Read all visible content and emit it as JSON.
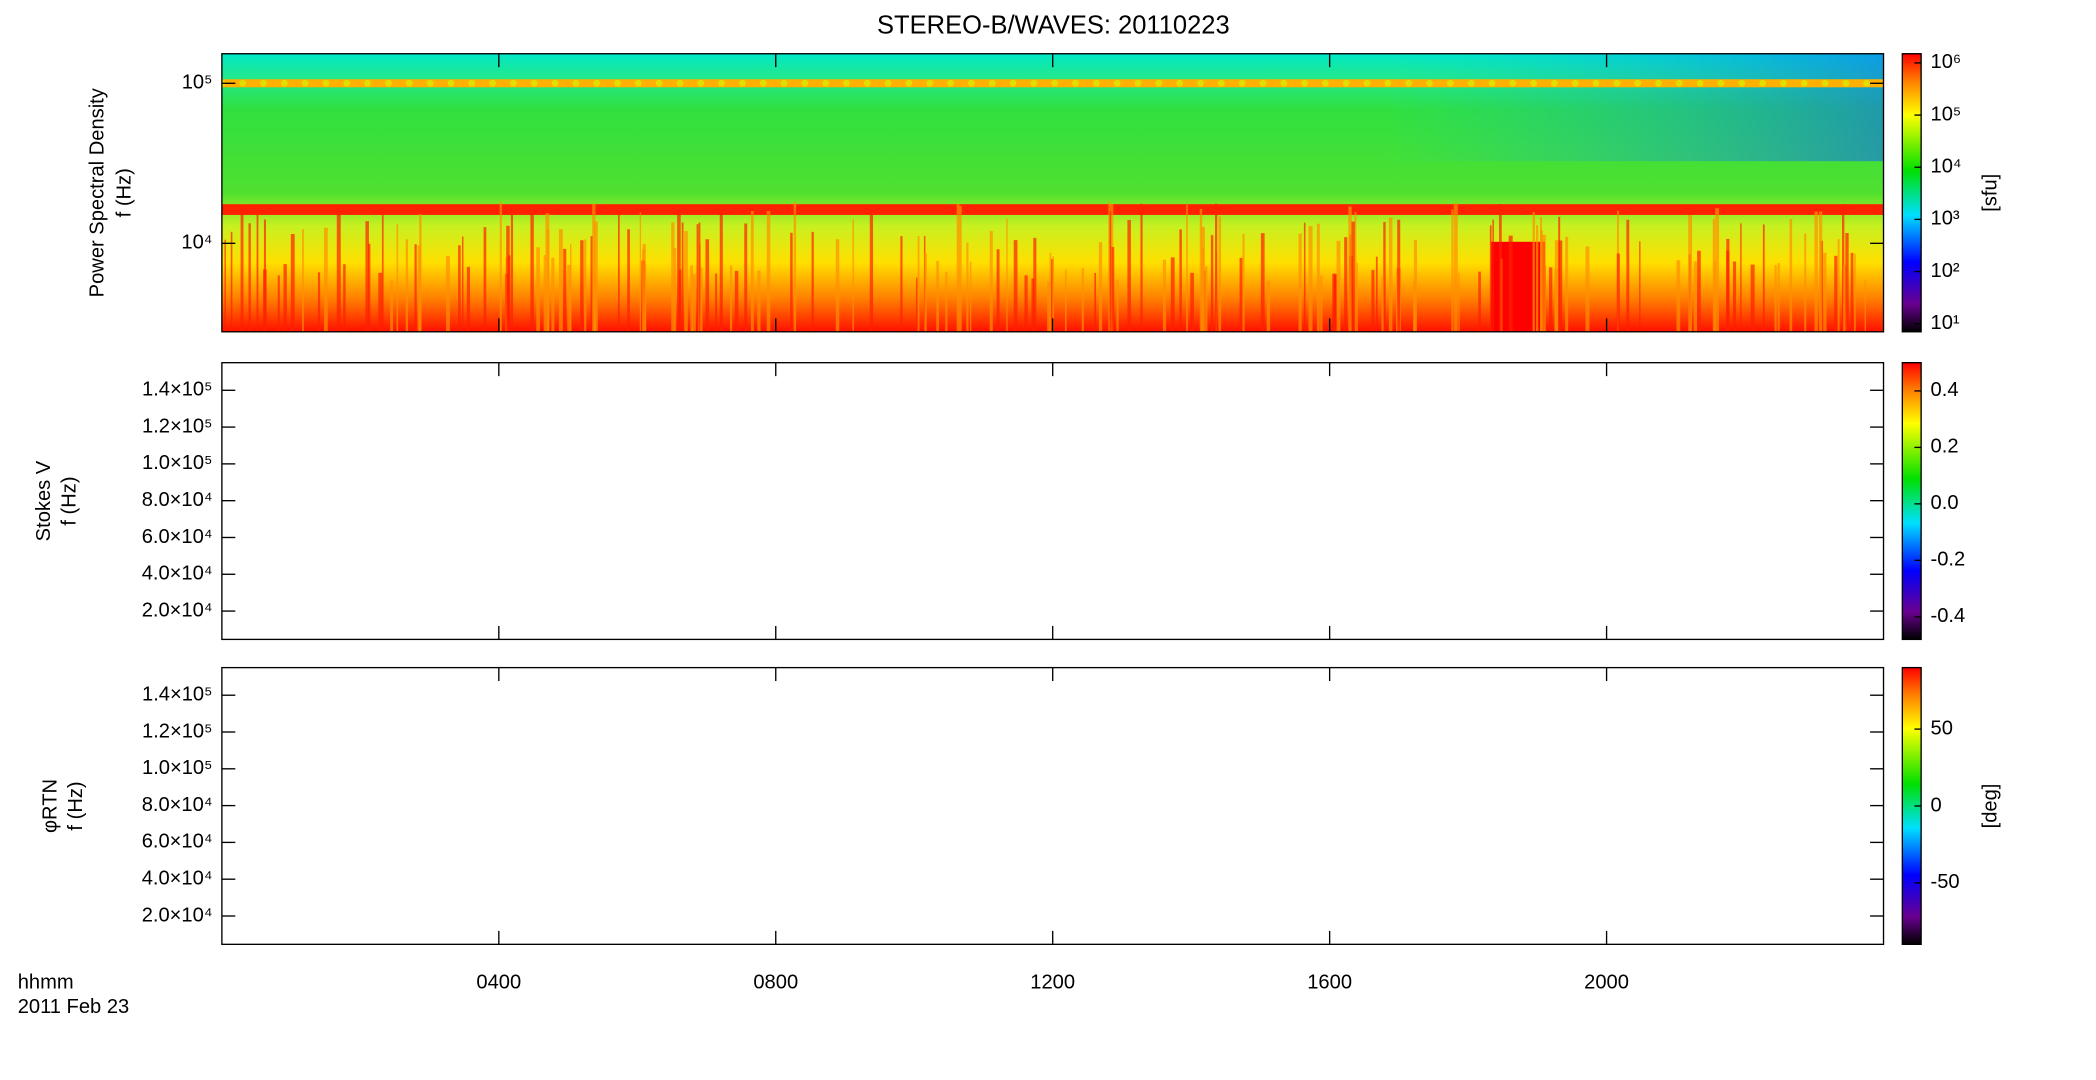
{
  "chart_data": [
    {
      "type": "heatmap",
      "title": "STEREO-B/WAVES: 20110223",
      "ylabel": [
        "Power Spectral Density",
        "f (Hz)"
      ],
      "ylog": true,
      "ylim": [
        2800,
        153000
      ],
      "yticks": [
        {
          "value": 10000,
          "label": "10⁴"
        },
        {
          "value": 100000,
          "label": "10⁵"
        }
      ],
      "xlim": [
        0,
        24
      ],
      "xticks": [
        4,
        8,
        12,
        16,
        20
      ],
      "colorbar": {
        "log": true,
        "lim": [
          7,
          1500000
        ],
        "label": "[sfu]",
        "ticks": [
          {
            "value": 10,
            "label": "10¹"
          },
          {
            "value": 100,
            "label": "10²"
          },
          {
            "value": 1000,
            "label": "10³"
          },
          {
            "value": 10000,
            "label": "10⁴"
          },
          {
            "value": 100000,
            "label": "10⁵"
          },
          {
            "value": 1000000,
            "label": "10⁶"
          }
        ]
      }
    },
    {
      "type": "heatmap",
      "ylabel": [
        "Stokes V",
        "f (Hz)"
      ],
      "ylog": false,
      "ylim": [
        4600,
        155000
      ],
      "yticks": [
        {
          "value": 20000,
          "label": "2.0×10⁴"
        },
        {
          "value": 40000,
          "label": "4.0×10⁴"
        },
        {
          "value": 60000,
          "label": "6.0×10⁴"
        },
        {
          "value": 80000,
          "label": "8.0×10⁴"
        },
        {
          "value": 100000,
          "label": "1.0×10⁵"
        },
        {
          "value": 120000,
          "label": "1.2×10⁵"
        },
        {
          "value": 140000,
          "label": "1.4×10⁵"
        }
      ],
      "xlim": [
        0,
        24
      ],
      "xticks": [
        4,
        8,
        12,
        16,
        20
      ],
      "colorbar": {
        "log": false,
        "lim": [
          -0.48,
          0.5
        ],
        "ticks": [
          -0.4,
          -0.2,
          {
            "value": 0,
            "label": "0.0"
          },
          0.2,
          0.4
        ]
      }
    },
    {
      "type": "heatmap",
      "ylabel": [
        "φRTN",
        "f (Hz)"
      ],
      "ylog": false,
      "ylim": [
        4600,
        155000
      ],
      "yticks": [
        {
          "value": 20000,
          "label": "2.0×10⁴"
        },
        {
          "value": 40000,
          "label": "4.0×10⁴"
        },
        {
          "value": 60000,
          "label": "6.0×10⁴"
        },
        {
          "value": 80000,
          "label": "8.0×10⁴"
        },
        {
          "value": 100000,
          "label": "1.0×10⁵"
        },
        {
          "value": 120000,
          "label": "1.2×10⁵"
        },
        {
          "value": 140000,
          "label": "1.4×10⁵"
        }
      ],
      "xlim": [
        0,
        24
      ],
      "xticks": [
        {
          "value": 4,
          "label": "0400"
        },
        {
          "value": 8,
          "label": "0800"
        },
        {
          "value": 12,
          "label": "1200"
        },
        {
          "value": 16,
          "label": "1600"
        },
        {
          "value": 20,
          "label": "2000"
        }
      ],
      "xlabel": [
        "hhmm",
        "2011 Feb 23"
      ],
      "colorbar": {
        "log": false,
        "lim": [
          -90,
          90
        ],
        "label": "[deg]",
        "ticks": [
          -50,
          0,
          50
        ]
      }
    }
  ]
}
